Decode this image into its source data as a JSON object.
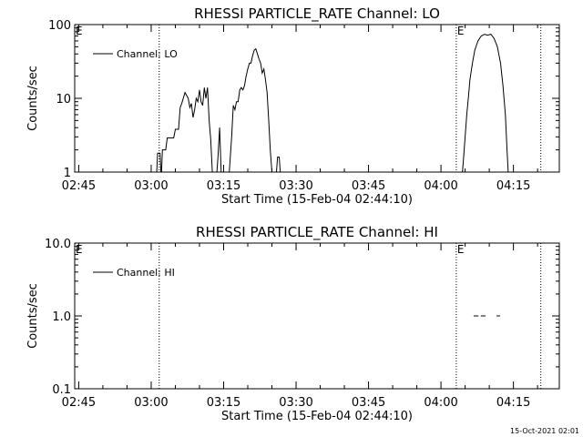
{
  "timestamp": "15-Oct-2021 02:01",
  "chart_data": [
    {
      "type": "line",
      "title": "RHESSI PARTICLE_RATE Channel: LO",
      "xlabel": "Start Time (15-Feb-04 02:44:10)",
      "ylabel": "Counts/sec",
      "y_scale": "log",
      "ylim": [
        1,
        100
      ],
      "xlim": [
        "02:44:10",
        "04:24:30"
      ],
      "x_ticks": [
        "02:45",
        "03:00",
        "03:15",
        "03:30",
        "03:45",
        "04:00",
        "04:15"
      ],
      "y_ticks": [
        "1",
        "10",
        "100"
      ],
      "legend": "Channel: LO",
      "legend_position": "top-left",
      "markers": [
        {
          "label": "E",
          "time": "02:44:10"
        },
        {
          "label": "",
          "time": "03:01:40"
        },
        {
          "label": "E",
          "time": "04:03:10"
        },
        {
          "label": "",
          "time": "04:20:40"
        }
      ],
      "series": [
        {
          "name": "Channel: LO",
          "segments": [
            [
              [
                "03:01:05",
                0.4
              ],
              [
                "03:01:20",
                1.8
              ],
              [
                "03:01:50",
                1.8
              ],
              [
                "03:02:05",
                0.8
              ],
              [
                "03:02:20",
                2.0
              ],
              [
                "03:03:00",
                2.0
              ],
              [
                "03:03:20",
                2.9
              ],
              [
                "03:04:40",
                2.9
              ],
              [
                "03:05:00",
                3.8
              ],
              [
                "03:05:40",
                3.8
              ],
              [
                "03:06:00",
                7.5
              ],
              [
                "03:06:20",
                8.5
              ],
              [
                "03:07:00",
                12.0
              ],
              [
                "03:07:40",
                10.0
              ],
              [
                "03:08:00",
                7.5
              ],
              [
                "03:08:20",
                8.5
              ],
              [
                "03:08:40",
                5.5
              ],
              [
                "03:09:00",
                7.0
              ],
              [
                "03:09:20",
                10.0
              ],
              [
                "03:09:40",
                9.0
              ],
              [
                "03:10:00",
                13.0
              ],
              [
                "03:10:20",
                9.0
              ],
              [
                "03:10:40",
                8.0
              ],
              [
                "03:11:00",
                14.0
              ],
              [
                "03:11:20",
                10.0
              ],
              [
                "03:11:40",
                14.0
              ],
              [
                "03:12:00",
                5.0
              ],
              [
                "03:12:20",
                2.8
              ],
              [
                "03:12:40",
                1.0
              ],
              [
                "03:13:00",
                0.4
              ]
            ],
            [
              [
                "03:13:30",
                0.4
              ],
              [
                "03:13:50",
                1.6
              ],
              [
                "03:14:10",
                4.0
              ],
              [
                "03:14:30",
                1.0
              ],
              [
                "03:14:50",
                0.4
              ]
            ],
            [
              [
                "03:15:50",
                0.4
              ],
              [
                "03:16:10",
                1.0
              ],
              [
                "03:16:40",
                3.0
              ],
              [
                "03:17:00",
                8.0
              ],
              [
                "03:17:20",
                7.0
              ],
              [
                "03:17:40",
                9.0
              ],
              [
                "03:18:00",
                9.0
              ],
              [
                "03:18:20",
                13.0
              ],
              [
                "03:18:40",
                14.0
              ],
              [
                "03:19:00",
                13.0
              ],
              [
                "03:19:20",
                15.0
              ],
              [
                "03:19:40",
                20.0
              ],
              [
                "03:20:00",
                25.0
              ],
              [
                "03:20:20",
                30.0
              ],
              [
                "03:20:40",
                30.0
              ],
              [
                "03:21:00",
                38.0
              ],
              [
                "03:21:20",
                45.0
              ],
              [
                "03:21:40",
                47.0
              ],
              [
                "03:22:00",
                40.0
              ],
              [
                "03:22:20",
                34.0
              ],
              [
                "03:22:40",
                30.0
              ],
              [
                "03:23:00",
                22.0
              ],
              [
                "03:23:20",
                25.0
              ],
              [
                "03:23:40",
                18.0
              ],
              [
                "03:24:00",
                12.0
              ],
              [
                "03:24:20",
                5.0
              ],
              [
                "03:24:40",
                2.0
              ],
              [
                "03:25:00",
                1.0
              ],
              [
                "03:25:20",
                0.4
              ]
            ],
            [
              [
                "03:25:50",
                0.4
              ],
              [
                "03:26:10",
                1.6
              ],
              [
                "03:26:30",
                1.6
              ],
              [
                "03:26:50",
                0.4
              ]
            ],
            [
              [
                "04:04:20",
                0.4
              ],
              [
                "04:04:40",
                1.5
              ],
              [
                "04:05:00",
                3.0
              ],
              [
                "04:05:20",
                6.0
              ],
              [
                "04:05:40",
                10.0
              ],
              [
                "04:06:00",
                18.0
              ],
              [
                "04:06:30",
                30.0
              ],
              [
                "04:07:00",
                45.0
              ],
              [
                "04:07:40",
                60.0
              ],
              [
                "04:08:20",
                70.0
              ],
              [
                "04:09:00",
                74.0
              ],
              [
                "04:09:40",
                72.0
              ],
              [
                "04:10:20",
                74.0
              ],
              [
                "04:11:00",
                65.0
              ],
              [
                "04:11:40",
                50.0
              ],
              [
                "04:12:20",
                30.0
              ],
              [
                "04:12:50",
                15.0
              ],
              [
                "04:13:20",
                6.0
              ],
              [
                "04:13:40",
                2.0
              ],
              [
                "04:14:00",
                0.4
              ]
            ]
          ]
        }
      ]
    },
    {
      "type": "line",
      "title": "RHESSI PARTICLE_RATE Channel: HI",
      "xlabel": "Start Time (15-Feb-04 02:44:10)",
      "ylabel": "Counts/sec",
      "y_scale": "log",
      "ylim": [
        0.1,
        10
      ],
      "xlim": [
        "02:44:10",
        "04:24:30"
      ],
      "x_ticks": [
        "02:45",
        "03:00",
        "03:15",
        "03:30",
        "03:45",
        "04:00",
        "04:15"
      ],
      "y_ticks": [
        "0.1",
        "1.0",
        "10.0"
      ],
      "legend": "Channel: HI",
      "legend_position": "top-left",
      "markers": [
        {
          "label": "E",
          "time": "02:44:10"
        },
        {
          "label": "",
          "time": "03:01:40"
        },
        {
          "label": "E",
          "time": "04:03:10"
        },
        {
          "label": "",
          "time": "04:20:40"
        }
      ],
      "series": [
        {
          "name": "Channel: HI",
          "segments": [
            [
              [
                "04:06:45",
                1.0
              ],
              [
                "04:07:45",
                1.0
              ]
            ],
            [
              [
                "04:08:15",
                1.0
              ],
              [
                "04:09:15",
                1.0
              ]
            ],
            [
              [
                "04:11:30",
                1.0
              ],
              [
                "04:12:15",
                1.0
              ]
            ]
          ]
        }
      ]
    }
  ]
}
